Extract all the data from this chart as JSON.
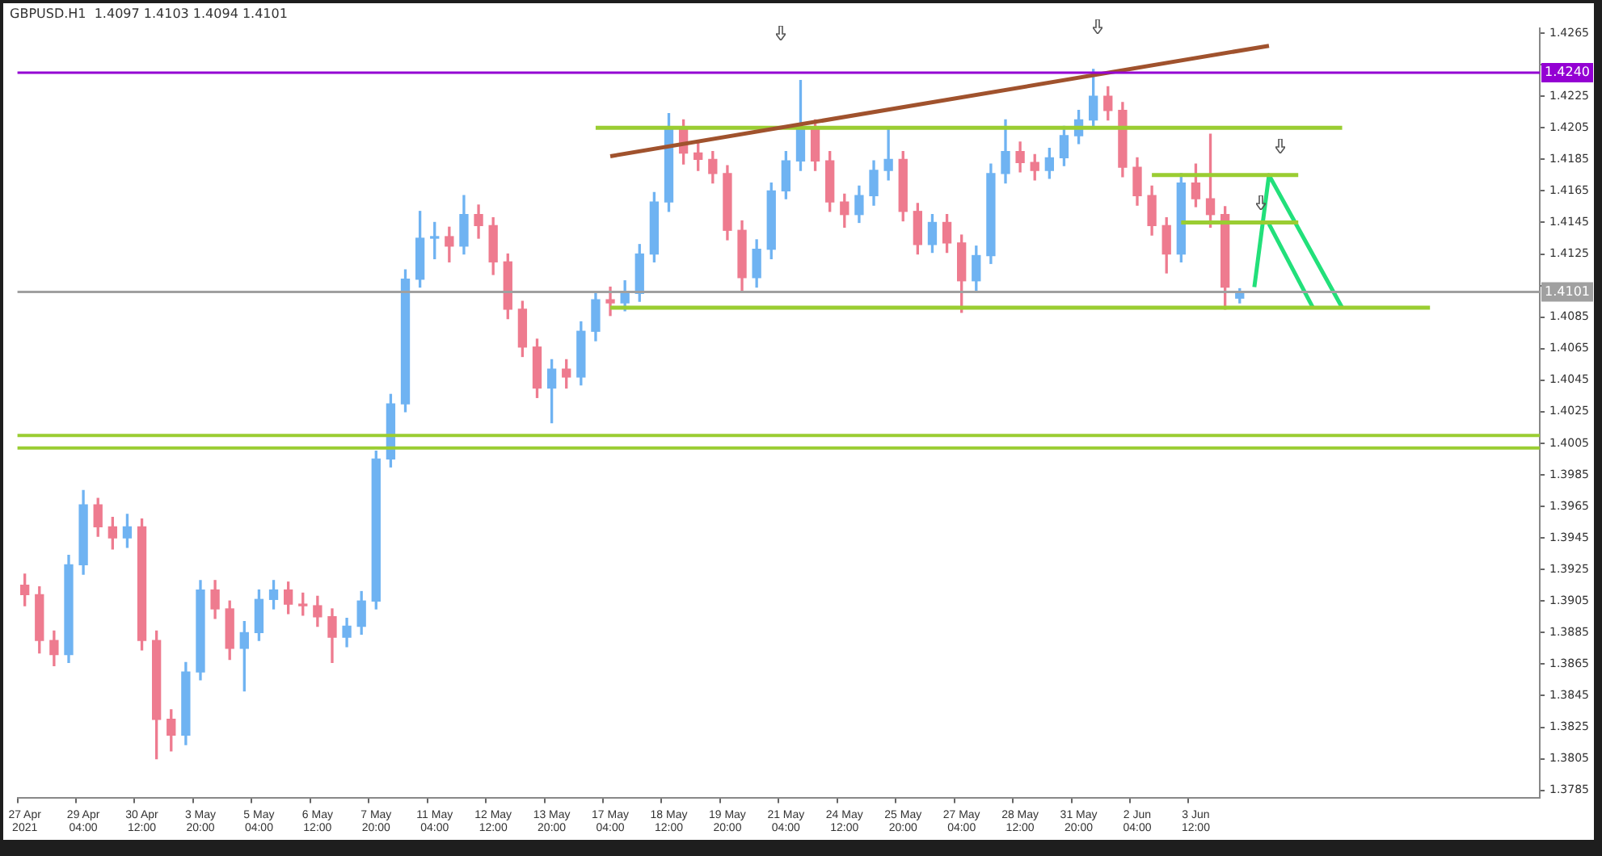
{
  "chart_data": {
    "type": "candlestick",
    "title": "GBPUSD.H1  1.4097 1.4103 1.4094 1.4101",
    "categories": [
      "27 Apr 2021",
      null,
      null,
      null,
      "29 Apr 04:00",
      null,
      null,
      null,
      "30 Apr 12:00",
      null,
      null,
      null,
      "3 May 20:00",
      null,
      null,
      null,
      "5 May 04:00",
      null,
      null,
      null,
      "6 May 12:00",
      null,
      null,
      null,
      "7 May 20:00",
      null,
      null,
      null,
      "11 May 04:00",
      null,
      null,
      null,
      "12 May 12:00",
      null,
      null,
      null,
      "13 May 20:00",
      null,
      null,
      null,
      "17 May 04:00",
      null,
      null,
      null,
      "18 May 12:00",
      null,
      null,
      null,
      "19 May 20:00",
      null,
      null,
      null,
      "21 May 04:00",
      null,
      null,
      null,
      "24 May 12:00",
      null,
      null,
      null,
      "25 May 20:00",
      null,
      null,
      null,
      "27 May 04:00",
      null,
      null,
      null,
      "28 May 12:00",
      null,
      null,
      null,
      "31 May 20:00",
      null,
      null,
      null,
      "2 Jun 04:00",
      null,
      null,
      null,
      "3 Jun 12:00",
      null,
      null,
      null,
      null,
      null,
      null,
      null,
      null,
      null,
      null,
      null,
      null,
      null,
      null,
      null,
      null,
      null,
      null,
      null,
      null,
      null,
      null,
      null
    ],
    "ohlc": [
      [
        1.3915,
        1.3922,
        1.3902,
        1.3909
      ],
      [
        1.3909,
        1.3914,
        1.3872,
        1.388
      ],
      [
        1.388,
        1.3886,
        1.3864,
        1.3871
      ],
      [
        1.3871,
        1.3934,
        1.3866,
        1.3928
      ],
      [
        1.3928,
        1.3975,
        1.3922,
        1.3966
      ],
      [
        1.3966,
        1.397,
        1.3946,
        1.3952
      ],
      [
        1.3952,
        1.3958,
        1.3938,
        1.3945
      ],
      [
        1.3945,
        1.396,
        1.3939,
        1.3952
      ],
      [
        1.3952,
        1.3957,
        1.3874,
        1.388
      ],
      [
        1.388,
        1.3886,
        1.3805,
        1.383
      ],
      [
        1.383,
        1.3836,
        1.381,
        1.382
      ],
      [
        1.382,
        1.3866,
        1.3814,
        1.386
      ],
      [
        1.386,
        1.3918,
        1.3855,
        1.3912
      ],
      [
        1.3912,
        1.3918,
        1.3894,
        1.39
      ],
      [
        1.39,
        1.3905,
        1.3868,
        1.3875
      ],
      [
        1.3875,
        1.3892,
        1.3848,
        1.3885
      ],
      [
        1.3885,
        1.3912,
        1.388,
        1.3906
      ],
      [
        1.3906,
        1.3918,
        1.39,
        1.3912
      ],
      [
        1.3912,
        1.3917,
        1.3897,
        1.3903
      ],
      [
        1.3903,
        1.391,
        1.3896,
        1.3902
      ],
      [
        1.3902,
        1.3908,
        1.3889,
        1.3895
      ],
      [
        1.3895,
        1.39,
        1.3866,
        1.3882
      ],
      [
        1.3882,
        1.3894,
        1.3876,
        1.3889
      ],
      [
        1.3889,
        1.3911,
        1.3884,
        1.3905
      ],
      [
        1.3905,
        1.4,
        1.39,
        1.3995
      ],
      [
        1.3995,
        1.4036,
        1.399,
        1.403
      ],
      [
        1.403,
        1.4115,
        1.4025,
        1.4109
      ],
      [
        1.4109,
        1.4152,
        1.4104,
        1.4135
      ],
      [
        1.4135,
        1.4145,
        1.4122,
        1.4136
      ],
      [
        1.4136,
        1.4142,
        1.412,
        1.413
      ],
      [
        1.413,
        1.4162,
        1.4125,
        1.415
      ],
      [
        1.415,
        1.4156,
        1.4135,
        1.4143
      ],
      [
        1.4143,
        1.4148,
        1.4112,
        1.412
      ],
      [
        1.412,
        1.4125,
        1.4084,
        1.409
      ],
      [
        1.409,
        1.4095,
        1.406,
        1.4066
      ],
      [
        1.4066,
        1.4071,
        1.4034,
        1.404
      ],
      [
        1.404,
        1.4058,
        1.4018,
        1.4052
      ],
      [
        1.4052,
        1.4058,
        1.404,
        1.4047
      ],
      [
        1.4047,
        1.4082,
        1.4042,
        1.4076
      ],
      [
        1.4076,
        1.4101,
        1.407,
        1.4096
      ],
      [
        1.4096,
        1.4104,
        1.4086,
        1.4094
      ],
      [
        1.4094,
        1.4108,
        1.4089,
        1.41
      ],
      [
        1.41,
        1.4131,
        1.4095,
        1.4125
      ],
      [
        1.4125,
        1.4164,
        1.412,
        1.4158
      ],
      [
        1.4158,
        1.4214,
        1.4152,
        1.4204
      ],
      [
        1.4204,
        1.421,
        1.4182,
        1.4189
      ],
      [
        1.4189,
        1.4196,
        1.4178,
        1.4185
      ],
      [
        1.4185,
        1.419,
        1.417,
        1.4176
      ],
      [
        1.4176,
        1.4181,
        1.4134,
        1.414
      ],
      [
        1.414,
        1.4146,
        1.4102,
        1.411
      ],
      [
        1.411,
        1.4134,
        1.4104,
        1.4128
      ],
      [
        1.4128,
        1.417,
        1.4122,
        1.4165
      ],
      [
        1.4165,
        1.419,
        1.416,
        1.4184
      ],
      [
        1.4184,
        1.4235,
        1.4178,
        1.4205
      ],
      [
        1.4205,
        1.421,
        1.4178,
        1.4184
      ],
      [
        1.4184,
        1.419,
        1.4152,
        1.4158
      ],
      [
        1.4158,
        1.4163,
        1.4142,
        1.415
      ],
      [
        1.415,
        1.4168,
        1.4145,
        1.4162
      ],
      [
        1.4162,
        1.4184,
        1.4156,
        1.4178
      ],
      [
        1.4178,
        1.4205,
        1.4172,
        1.4185
      ],
      [
        1.4185,
        1.419,
        1.4146,
        1.4152
      ],
      [
        1.4152,
        1.4157,
        1.4125,
        1.4131
      ],
      [
        1.4131,
        1.415,
        1.4126,
        1.4145
      ],
      [
        1.4145,
        1.415,
        1.4126,
        1.4132
      ],
      [
        1.4132,
        1.4137,
        1.4088,
        1.4108
      ],
      [
        1.4108,
        1.413,
        1.4102,
        1.4124
      ],
      [
        1.4124,
        1.4182,
        1.4119,
        1.4176
      ],
      [
        1.4176,
        1.421,
        1.417,
        1.419
      ],
      [
        1.419,
        1.4196,
        1.4177,
        1.4183
      ],
      [
        1.4183,
        1.4188,
        1.4172,
        1.4178
      ],
      [
        1.4178,
        1.4192,
        1.4173,
        1.4186
      ],
      [
        1.4186,
        1.4206,
        1.4181,
        1.42
      ],
      [
        1.42,
        1.4216,
        1.4195,
        1.421
      ],
      [
        1.421,
        1.4242,
        1.4205,
        1.4225
      ],
      [
        1.4225,
        1.4231,
        1.421,
        1.4216
      ],
      [
        1.4216,
        1.4221,
        1.4174,
        1.418
      ],
      [
        1.418,
        1.4186,
        1.4156,
        1.4162
      ],
      [
        1.4162,
        1.4168,
        1.4137,
        1.4143
      ],
      [
        1.4143,
        1.4148,
        1.4113,
        1.4125
      ],
      [
        1.4125,
        1.4176,
        1.412,
        1.417
      ],
      [
        1.417,
        1.4182,
        1.4155,
        1.416
      ],
      [
        1.416,
        1.4201,
        1.4142,
        1.415
      ],
      [
        1.415,
        1.4155,
        1.409,
        1.4104
      ],
      [
        1.4097,
        1.4103,
        1.4094,
        1.4101
      ],
      null,
      null,
      null,
      null,
      null,
      null,
      null,
      null,
      null,
      null,
      null,
      null,
      null,
      null,
      null,
      null,
      null,
      null,
      null,
      null
    ],
    "colors": [
      "#ee7b8f",
      "#ee7b8f",
      "#ee7b8f",
      "#6fb3f2",
      "#6fb3f2",
      "#ee7b8f",
      "#ee7b8f",
      "#6fb3f2",
      "#ee7b8f",
      "#ee7b8f",
      "#ee7b8f",
      "#6fb3f2",
      "#6fb3f2",
      "#ee7b8f",
      "#ee7b8f",
      "#6fb3f2",
      "#6fb3f2",
      "#6fb3f2",
      "#ee7b8f",
      "#ee7b8f",
      "#ee7b8f",
      "#ee7b8f",
      "#6fb3f2",
      "#6fb3f2",
      "#6fb3f2",
      "#6fb3f2",
      "#6fb3f2",
      "#6fb3f2",
      "#6fb3f2",
      "#ee7b8f",
      "#6fb3f2",
      "#ee7b8f",
      "#ee7b8f",
      "#ee7b8f",
      "#ee7b8f",
      "#ee7b8f",
      "#6fb3f2",
      "#ee7b8f",
      "#6fb3f2",
      "#6fb3f2",
      "#ee7b8f",
      "#6fb3f2",
      "#6fb3f2",
      "#6fb3f2",
      "#6fb3f2",
      "#ee7b8f",
      "#ee7b8f",
      "#ee7b8f",
      "#ee7b8f",
      "#ee7b8f",
      "#6fb3f2",
      "#6fb3f2",
      "#6fb3f2",
      "#6fb3f2",
      "#ee7b8f",
      "#ee7b8f",
      "#ee7b8f",
      "#6fb3f2",
      "#6fb3f2",
      "#6fb3f2",
      "#ee7b8f",
      "#ee7b8f",
      "#6fb3f2",
      "#ee7b8f",
      "#ee7b8f",
      "#6fb3f2",
      "#6fb3f2",
      "#6fb3f2",
      "#ee7b8f",
      "#ee7b8f",
      "#6fb3f2",
      "#6fb3f2",
      "#6fb3f2",
      "#6fb3f2",
      "#ee7b8f",
      "#ee7b8f",
      "#ee7b8f",
      "#ee7b8f",
      "#ee7b8f",
      "#6fb3f2",
      "#ee7b8f",
      "#ee7b8f",
      "#ee7b8f",
      "#6fb3f2",
      null,
      null,
      null,
      null,
      null,
      null,
      null,
      null,
      null,
      null,
      null,
      null,
      null,
      null,
      null,
      null,
      null,
      null,
      null,
      null
    ],
    "series": [
      {
        "type": "line",
        "color": "#a0522d",
        "values": [
          null,
          null,
          null,
          null,
          null,
          null,
          null,
          null,
          null,
          null,
          null,
          null,
          null,
          null,
          null,
          null,
          null,
          null,
          null,
          null,
          null,
          null,
          null,
          null,
          null,
          null,
          null,
          null,
          null,
          null,
          null,
          null,
          null,
          null,
          null,
          null,
          null,
          null,
          null,
          null,
          1.4187,
          null,
          null,
          null,
          null,
          null,
          null,
          null,
          null,
          null,
          null,
          null,
          null,
          null,
          null,
          null,
          null,
          null,
          null,
          null,
          null,
          null,
          null,
          null,
          null,
          null,
          null,
          null,
          null,
          null,
          null,
          null,
          null,
          null,
          null,
          null,
          null,
          null,
          null,
          null,
          null,
          null,
          null,
          null,
          null,
          1.4257,
          null,
          null,
          null,
          null,
          null,
          null,
          null,
          null,
          null,
          null,
          null,
          null,
          null,
          null,
          null,
          null,
          null,
          null
        ]
      },
      {
        "type": "line",
        "color": "#9acd32",
        "values": [
          null,
          null,
          null,
          null,
          null,
          null,
          null,
          null,
          null,
          null,
          null,
          null,
          null,
          null,
          null,
          null,
          null,
          null,
          null,
          null,
          null,
          null,
          null,
          null,
          null,
          null,
          null,
          null,
          null,
          null,
          null,
          null,
          null,
          null,
          null,
          null,
          null,
          null,
          null,
          1.4205,
          null,
          null,
          null,
          null,
          null,
          null,
          null,
          null,
          null,
          null,
          null,
          null,
          null,
          null,
          null,
          null,
          null,
          null,
          null,
          null,
          null,
          null,
          null,
          null,
          null,
          null,
          null,
          null,
          null,
          null,
          null,
          null,
          null,
          null,
          null,
          null,
          null,
          null,
          null,
          null,
          null,
          null,
          null,
          null,
          null,
          null,
          null,
          null,
          null,
          null,
          1.4205,
          null,
          null,
          null,
          null,
          null,
          null,
          null,
          null,
          null,
          null,
          null,
          null,
          null
        ]
      },
      {
        "type": "line",
        "color": "#9acd32",
        "values": [
          null,
          null,
          null,
          null,
          null,
          null,
          null,
          null,
          null,
          null,
          null,
          null,
          null,
          null,
          null,
          null,
          null,
          null,
          null,
          null,
          null,
          null,
          null,
          null,
          null,
          null,
          null,
          null,
          null,
          null,
          null,
          null,
          null,
          null,
          null,
          null,
          null,
          null,
          null,
          null,
          1.4091,
          null,
          null,
          null,
          null,
          null,
          null,
          null,
          null,
          null,
          null,
          null,
          null,
          null,
          null,
          null,
          null,
          null,
          null,
          null,
          null,
          null,
          null,
          null,
          null,
          null,
          null,
          null,
          null,
          null,
          null,
          null,
          null,
          null,
          null,
          null,
          null,
          null,
          null,
          null,
          null,
          null,
          null,
          null,
          null,
          null,
          null,
          null,
          null,
          null,
          null,
          null,
          null,
          null,
          null,
          null,
          1.4091,
          null,
          null,
          null,
          null,
          null,
          null,
          null
        ]
      },
      {
        "type": "line",
        "color": "#9acd32",
        "values": [
          null,
          null,
          null,
          null,
          null,
          null,
          null,
          null,
          null,
          null,
          null,
          null,
          null,
          null,
          null,
          null,
          null,
          null,
          null,
          null,
          null,
          null,
          null,
          null,
          null,
          null,
          null,
          null,
          null,
          null,
          null,
          null,
          null,
          null,
          null,
          null,
          null,
          null,
          null,
          null,
          null,
          null,
          null,
          null,
          null,
          null,
          null,
          null,
          null,
          null,
          null,
          null,
          null,
          null,
          null,
          null,
          null,
          null,
          null,
          null,
          null,
          null,
          null,
          null,
          null,
          null,
          null,
          null,
          null,
          null,
          null,
          null,
          null,
          null,
          null,
          null,
          null,
          1.4175,
          null,
          null,
          null,
          null,
          null,
          null,
          null,
          null,
          null,
          1.4175,
          null,
          null,
          null,
          null,
          null,
          null,
          null,
          null,
          null,
          null,
          null,
          null,
          null,
          null,
          null,
          null
        ]
      },
      {
        "type": "line",
        "color": "#9acd32",
        "values": [
          null,
          null,
          null,
          null,
          null,
          null,
          null,
          null,
          null,
          null,
          null,
          null,
          null,
          null,
          null,
          null,
          null,
          null,
          null,
          null,
          null,
          null,
          null,
          null,
          null,
          null,
          null,
          null,
          null,
          null,
          null,
          null,
          null,
          null,
          null,
          null,
          null,
          null,
          null,
          null,
          null,
          null,
          null,
          null,
          null,
          null,
          null,
          null,
          null,
          null,
          null,
          null,
          null,
          null,
          null,
          null,
          null,
          null,
          null,
          null,
          null,
          null,
          null,
          null,
          null,
          null,
          null,
          null,
          null,
          null,
          null,
          null,
          null,
          null,
          null,
          null,
          null,
          null,
          null,
          1.4145,
          null,
          null,
          null,
          null,
          null,
          null,
          null,
          1.4145,
          null,
          null,
          null,
          null,
          null,
          null,
          null,
          null,
          null,
          null,
          null,
          null,
          null,
          null,
          null,
          null
        ]
      },
      {
        "type": "line",
        "color": "#22e07a",
        "values": [
          null,
          null,
          null,
          null,
          null,
          null,
          null,
          null,
          null,
          null,
          null,
          null,
          null,
          null,
          null,
          null,
          null,
          null,
          null,
          null,
          null,
          null,
          null,
          null,
          null,
          null,
          null,
          null,
          null,
          null,
          null,
          null,
          null,
          null,
          null,
          null,
          null,
          null,
          null,
          null,
          null,
          null,
          null,
          null,
          null,
          null,
          null,
          null,
          null,
          null,
          null,
          null,
          null,
          null,
          null,
          null,
          null,
          null,
          null,
          null,
          null,
          null,
          null,
          null,
          null,
          null,
          null,
          null,
          null,
          null,
          null,
          null,
          null,
          null,
          null,
          null,
          null,
          null,
          null,
          null,
          null,
          null,
          null,
          null,
          1.4104,
          1.4175,
          null,
          null,
          null,
          null,
          1.4091,
          null,
          null,
          null,
          null,
          null,
          null,
          null,
          null,
          null,
          null,
          null,
          null,
          null
        ]
      },
      {
        "type": "line",
        "color": "#22e07a",
        "values": [
          null,
          null,
          null,
          null,
          null,
          null,
          null,
          null,
          null,
          null,
          null,
          null,
          null,
          null,
          null,
          null,
          null,
          null,
          null,
          null,
          null,
          null,
          null,
          null,
          null,
          null,
          null,
          null,
          null,
          null,
          null,
          null,
          null,
          null,
          null,
          null,
          null,
          null,
          null,
          null,
          null,
          null,
          null,
          null,
          null,
          null,
          null,
          null,
          null,
          null,
          null,
          null,
          null,
          null,
          null,
          null,
          null,
          null,
          null,
          null,
          null,
          null,
          null,
          null,
          null,
          null,
          null,
          null,
          null,
          null,
          null,
          null,
          null,
          null,
          null,
          null,
          null,
          null,
          null,
          null,
          null,
          null,
          null,
          null,
          null,
          1.4144,
          null,
          null,
          1.4091,
          null,
          null,
          null,
          null,
          null,
          null,
          null,
          null,
          null,
          null,
          null,
          null,
          null,
          null,
          null
        ]
      }
    ],
    "ref_lines": [
      {
        "axis": "y",
        "value": 1.424,
        "label": "1.4240",
        "color": "#9400d3"
      },
      {
        "axis": "y",
        "value": 1.4101,
        "label": "1.4101",
        "color": "#a0a0a0"
      },
      {
        "axis": "y",
        "value": 1.401,
        "color": "#9acd32"
      },
      {
        "axis": "y",
        "value": 1.4002,
        "color": "#9acd32"
      }
    ],
    "ylim": [
      1.378,
      1.4268
    ],
    "yticks": [
      1.3785,
      1.3805,
      1.3825,
      1.3845,
      1.3865,
      1.3885,
      1.3905,
      1.3925,
      1.3945,
      1.3965,
      1.3985,
      1.4005,
      1.4025,
      1.4045,
      1.4065,
      1.4085,
      {
        "value": 1.4105,
        "label": null
      },
      1.4125,
      1.4145,
      1.4165,
      1.4185,
      1.4205,
      1.4225,
      {
        "value": 1.4245,
        "label": null
      },
      1.4265
    ]
  }
}
